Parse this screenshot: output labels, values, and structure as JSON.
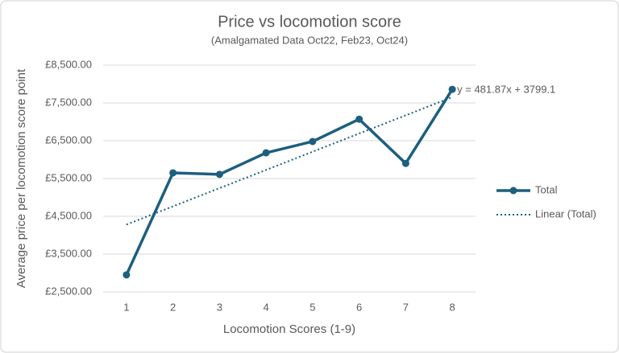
{
  "chart_data": {
    "type": "line",
    "title": "Price vs locomotion score",
    "subtitle": "(Amalgamated Data Oct22, Feb23, Oct24)",
    "x_label": "Locomotion Scores (1-9)",
    "y_label": "Average price per locomotion score point",
    "categories": [
      "1",
      "2",
      "3",
      "4",
      "5",
      "6",
      "7",
      "8"
    ],
    "series": [
      {
        "name": "Total",
        "color": "#1c5f7e",
        "style": "solid",
        "markers": true,
        "values": [
          2950,
          5650,
          5610,
          6180,
          6480,
          7070,
          5900,
          7860
        ]
      },
      {
        "name": "Linear (Total)",
        "color": "#1c5f7e",
        "style": "dotted",
        "markers": false,
        "values": [
          4281,
          4763,
          5245,
          5727,
          6209,
          6691,
          7172,
          7654
        ]
      }
    ],
    "annotation": "y = 481.87x + 3799.1",
    "ylim": [
      2500,
      8500
    ],
    "yticks": [
      {
        "value": 2500,
        "label": "£2,500.00"
      },
      {
        "value": 3500,
        "label": "£3,500.00"
      },
      {
        "value": 4500,
        "label": "£4,500.00"
      },
      {
        "value": 5500,
        "label": "£5,500.00"
      },
      {
        "value": 6500,
        "label": "£6,500.00"
      },
      {
        "value": 7500,
        "label": "£7,500.00"
      },
      {
        "value": 8500,
        "label": "£8,500.00"
      }
    ],
    "grid": true,
    "legend": "right"
  }
}
